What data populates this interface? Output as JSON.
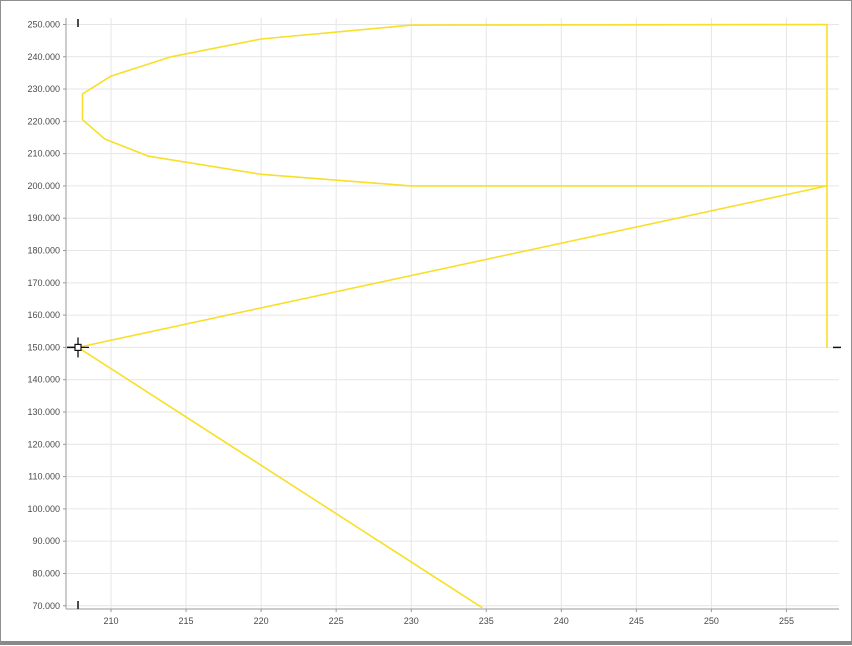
{
  "chart_data": {
    "type": "line",
    "title": "",
    "xlabel": "",
    "ylabel": "",
    "xlim": [
      207,
      258.5
    ],
    "ylim": [
      69,
      252
    ],
    "grid": true,
    "x_ticks": [
      "210",
      "215",
      "220",
      "225",
      "230",
      "235",
      "240",
      "245",
      "250",
      "255"
    ],
    "y_ticks": [
      "70.000",
      "80.000",
      "90.000",
      "100.000",
      "110.000",
      "120.000",
      "130.000",
      "140.000",
      "150.000",
      "160.000",
      "170.000",
      "180.000",
      "190.000",
      "200.000",
      "210.000",
      "220.000",
      "230.000",
      "240.000",
      "250.000"
    ],
    "line_color": "#f7df2a",
    "series": [
      {
        "points": [
          [
            234.7,
            69.5
          ],
          [
            207.8,
            150
          ],
          [
            257.7,
            200
          ],
          [
            230,
            200
          ],
          [
            220,
            203.6
          ],
          [
            212.5,
            209.2
          ],
          [
            209.6,
            214.5
          ],
          [
            208.1,
            220.5
          ],
          [
            208.1,
            228.5
          ],
          [
            210,
            234
          ],
          [
            214,
            240
          ],
          [
            220,
            245.5
          ],
          [
            230,
            249.8
          ],
          [
            257.7,
            250
          ],
          [
            257.7,
            150
          ]
        ]
      }
    ],
    "cursor": {
      "x": 207.8,
      "y": 150
    }
  }
}
